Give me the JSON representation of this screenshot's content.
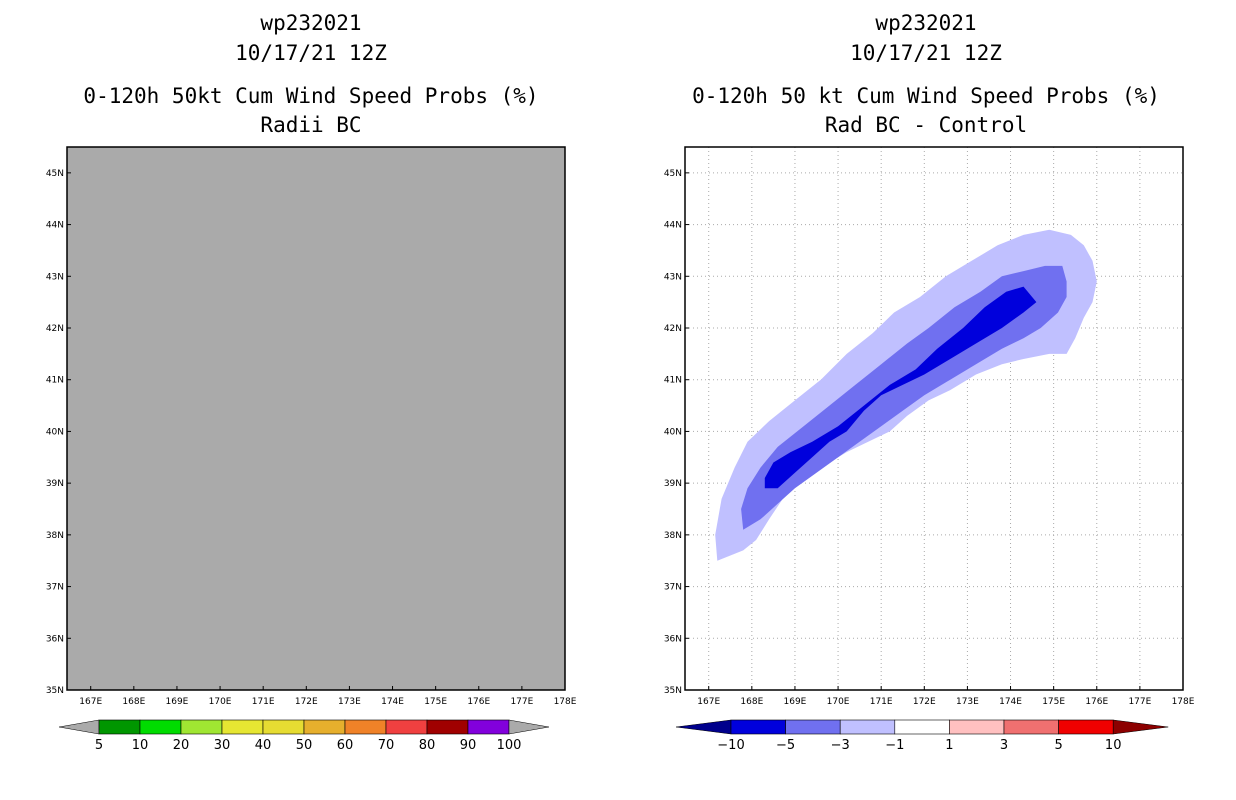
{
  "chart_data": [
    {
      "type": "heatmap",
      "id": "left",
      "title_lines": [
        "wp232021",
        "10/17/21 12Z",
        "0-120h 50kt Cum Wind Speed Probs (%)",
        "Radii BC"
      ],
      "x_ticks": [
        "167E",
        "168E",
        "169E",
        "170E",
        "171E",
        "172E",
        "173E",
        "174E",
        "175E",
        "176E",
        "177E",
        "178E"
      ],
      "y_ticks": [
        "35N",
        "36N",
        "37N",
        "38N",
        "39N",
        "40N",
        "41N",
        "42N",
        "43N",
        "44N",
        "45N"
      ],
      "xlim": [
        166.45,
        178
      ],
      "ylim": [
        35,
        45.5
      ],
      "background": "#aaaaaa",
      "grid": false,
      "colorbar": {
        "colors": [
          "#009600",
          "#00dc00",
          "#a0e632",
          "#e6e632",
          "#e6dc32",
          "#e6af2d",
          "#f08228",
          "#f04040",
          "#a00000",
          "#8200dc"
        ],
        "labels": [
          "5",
          "10",
          "20",
          "30",
          "40",
          "50",
          "60",
          "70",
          "80",
          "90",
          "100"
        ],
        "low_color": "#aaaaaa",
        "high_color": "#aaaaaa"
      },
      "contours": []
    },
    {
      "type": "heatmap",
      "id": "right",
      "title_lines": [
        "wp232021",
        "10/17/21 12Z",
        "0-120h 50 kt Cum Wind Speed Probs (%)",
        "Rad BC - Control"
      ],
      "x_ticks": [
        "167E",
        "168E",
        "169E",
        "170E",
        "171E",
        "172E",
        "173E",
        "174E",
        "175E",
        "176E",
        "177E",
        "178E"
      ],
      "y_ticks": [
        "35N",
        "36N",
        "37N",
        "38N",
        "39N",
        "40N",
        "41N",
        "42N",
        "43N",
        "44N",
        "45N"
      ],
      "xlim": [
        166.45,
        178
      ],
      "ylim": [
        35,
        45.5
      ],
      "background": "#ffffff",
      "grid": true,
      "colorbar": {
        "colors": [
          "#0000dc",
          "#7070f0",
          "#c0c0ff",
          "#ffffff",
          "#ffc0c0",
          "#f07070",
          "#f00000"
        ],
        "labels": [
          "-10",
          "-5",
          "-3",
          "-1",
          "1",
          "3",
          "5",
          "10"
        ],
        "low_color": "#00008c",
        "high_color": "#8c0000"
      },
      "contours": [
        {
          "level": "-1 to -3",
          "color": "#c0c0ff",
          "points": [
            [
              167.2,
              37.5
            ],
            [
              167.8,
              37.7
            ],
            [
              168.1,
              37.9
            ],
            [
              168.4,
              38.3
            ],
            [
              168.8,
              38.8
            ],
            [
              169.2,
              39.1
            ],
            [
              169.8,
              39.4
            ],
            [
              170.2,
              39.6
            ],
            [
              170.7,
              39.8
            ],
            [
              171.2,
              40.0
            ],
            [
              171.6,
              40.3
            ],
            [
              172.1,
              40.6
            ],
            [
              172.6,
              40.8
            ],
            [
              173.2,
              41.1
            ],
            [
              173.8,
              41.3
            ],
            [
              174.3,
              41.4
            ],
            [
              174.9,
              41.5
            ],
            [
              175.3,
              41.5
            ],
            [
              175.5,
              41.8
            ],
            [
              175.7,
              42.2
            ],
            [
              175.9,
              42.5
            ],
            [
              176.0,
              42.9
            ],
            [
              175.9,
              43.3
            ],
            [
              175.7,
              43.6
            ],
            [
              175.4,
              43.8
            ],
            [
              174.9,
              43.9
            ],
            [
              174.3,
              43.8
            ],
            [
              173.7,
              43.6
            ],
            [
              173.1,
              43.3
            ],
            [
              172.5,
              43.0
            ],
            [
              171.9,
              42.6
            ],
            [
              171.3,
              42.3
            ],
            [
              170.8,
              41.9
            ],
            [
              170.2,
              41.5
            ],
            [
              169.6,
              41.0
            ],
            [
              169.0,
              40.6
            ],
            [
              168.4,
              40.2
            ],
            [
              167.9,
              39.8
            ],
            [
              167.6,
              39.3
            ],
            [
              167.3,
              38.7
            ],
            [
              167.15,
              38.0
            ]
          ]
        },
        {
          "level": "-3 to -5",
          "color": "#7070f0",
          "points": [
            [
              167.8,
              38.1
            ],
            [
              168.2,
              38.3
            ],
            [
              168.6,
              38.6
            ],
            [
              169.0,
              38.9
            ],
            [
              169.5,
              39.2
            ],
            [
              170.0,
              39.5
            ],
            [
              170.5,
              39.8
            ],
            [
              171.0,
              40.1
            ],
            [
              171.5,
              40.4
            ],
            [
              172.0,
              40.7
            ],
            [
              172.6,
              41.0
            ],
            [
              173.2,
              41.3
            ],
            [
              173.8,
              41.6
            ],
            [
              174.3,
              41.8
            ],
            [
              174.7,
              42.0
            ],
            [
              175.1,
              42.3
            ],
            [
              175.3,
              42.6
            ],
            [
              175.3,
              42.9
            ],
            [
              175.2,
              43.2
            ],
            [
              174.8,
              43.2
            ],
            [
              174.3,
              43.1
            ],
            [
              173.8,
              43.0
            ],
            [
              173.3,
              42.7
            ],
            [
              172.7,
              42.4
            ],
            [
              172.1,
              42.0
            ],
            [
              171.6,
              41.7
            ],
            [
              171.0,
              41.3
            ],
            [
              170.4,
              40.9
            ],
            [
              169.8,
              40.5
            ],
            [
              169.2,
              40.1
            ],
            [
              168.6,
              39.7
            ],
            [
              168.2,
              39.3
            ],
            [
              167.9,
              38.9
            ],
            [
              167.75,
              38.5
            ]
          ]
        },
        {
          "level": "-5 to -10",
          "color": "#0000dc",
          "points": [
            [
              168.3,
              38.9
            ],
            [
              168.6,
              38.9
            ],
            [
              169.0,
              39.2
            ],
            [
              169.4,
              39.5
            ],
            [
              169.8,
              39.8
            ],
            [
              170.2,
              40.0
            ],
            [
              170.6,
              40.4
            ],
            [
              171.0,
              40.7
            ],
            [
              171.5,
              40.9
            ],
            [
              172.0,
              41.1
            ],
            [
              172.6,
              41.4
            ],
            [
              173.2,
              41.7
            ],
            [
              173.8,
              42.0
            ],
            [
              174.3,
              42.3
            ],
            [
              174.6,
              42.5
            ],
            [
              174.3,
              42.8
            ],
            [
              173.9,
              42.7
            ],
            [
              173.4,
              42.4
            ],
            [
              172.9,
              42.0
            ],
            [
              172.3,
              41.6
            ],
            [
              171.8,
              41.2
            ],
            [
              171.2,
              40.9
            ],
            [
              170.6,
              40.5
            ],
            [
              170.0,
              40.1
            ],
            [
              169.4,
              39.8
            ],
            [
              168.9,
              39.6
            ],
            [
              168.5,
              39.4
            ],
            [
              168.3,
              39.1
            ]
          ]
        }
      ]
    }
  ]
}
